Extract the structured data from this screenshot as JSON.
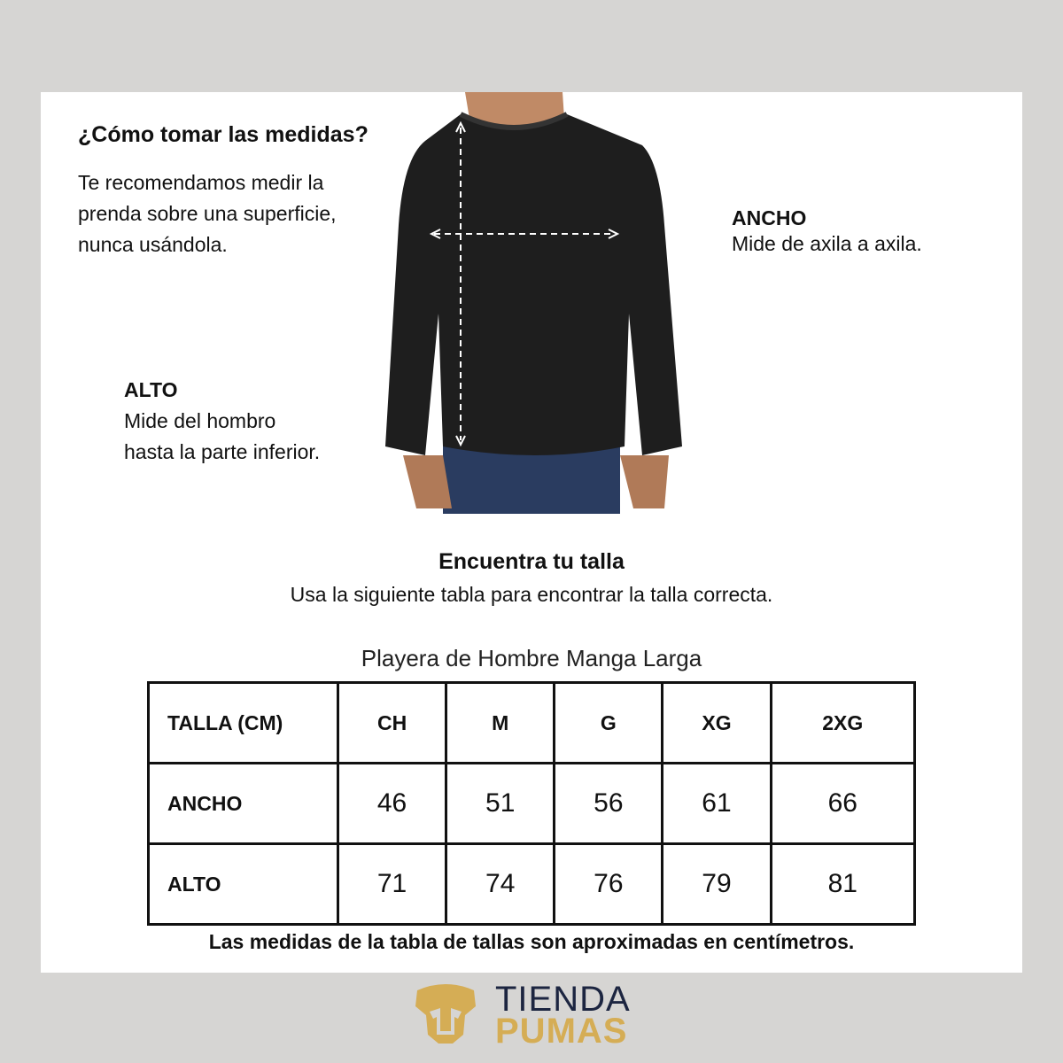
{
  "how": {
    "title": "¿Cómo tomar las medidas?",
    "lines": [
      "Te recomendamos medir la",
      "prenda sobre una superficie,",
      "nunca usándola."
    ]
  },
  "ancho": {
    "title": "ANCHO",
    "desc": "Mide de axila a axila."
  },
  "alto": {
    "title": "ALTO",
    "lines": [
      "Mide del hombro",
      "hasta la parte inferior."
    ]
  },
  "find": {
    "title": "Encuentra tu talla",
    "subtitle": "Usa la siguiente tabla para encontrar la talla correcta."
  },
  "table": {
    "caption": "Playera de Hombre Manga Larga",
    "headers": [
      "TALLA (CM)",
      "CH",
      "M",
      "G",
      "XG",
      "2XG"
    ],
    "rows": [
      {
        "label": "ANCHO",
        "values": [
          "46",
          "51",
          "56",
          "61",
          "66"
        ]
      },
      {
        "label": "ALTO",
        "values": [
          "71",
          "74",
          "76",
          "79",
          "81"
        ]
      }
    ]
  },
  "note": "Las medidas de la tabla de tallas son aproximadas en centímetros.",
  "logo": {
    "line1": "TIENDA",
    "line2": "PUMAS",
    "gold": "#d5ad55",
    "navy": "#1c2540"
  }
}
